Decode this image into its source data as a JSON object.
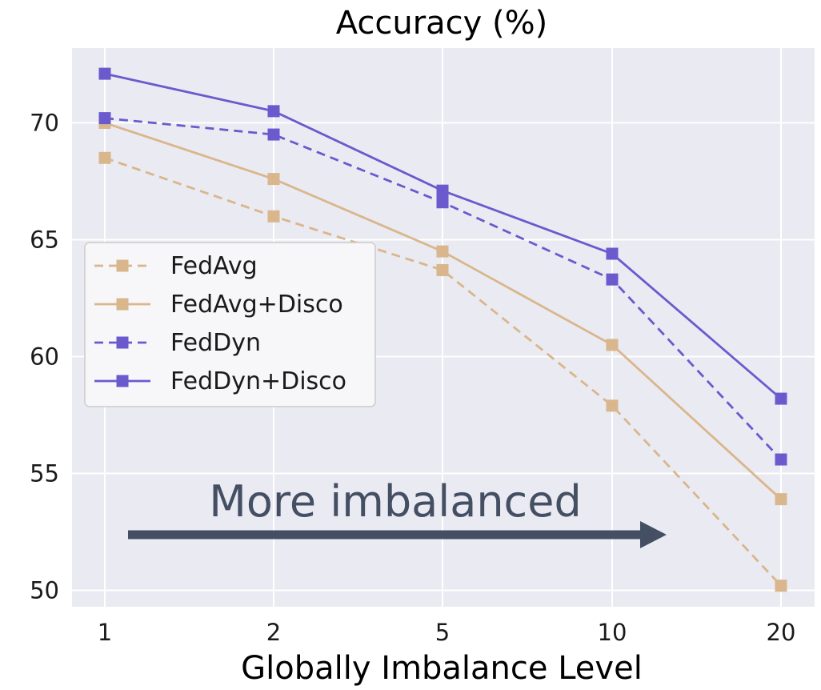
{
  "chart_data": {
    "type": "line",
    "title": "Accuracy (%)",
    "xlabel": "Globally Imbalance Level",
    "ylabel": "",
    "categories": [
      "1",
      "2",
      "5",
      "10",
      "20"
    ],
    "ylim": [
      49.3,
      73.2
    ],
    "yticks": [
      50,
      55,
      60,
      65,
      70
    ],
    "grid": true,
    "legend_position": "center-left",
    "series": [
      {
        "name": "FedAvg",
        "color": "#d9b68c",
        "dashed": true,
        "marker": "square",
        "values": [
          68.5,
          66.0,
          63.7,
          57.9,
          50.2
        ]
      },
      {
        "name": "FedAvg+Disco",
        "color": "#d9b68c",
        "dashed": false,
        "marker": "square",
        "values": [
          70.0,
          67.6,
          64.5,
          60.5,
          53.9
        ]
      },
      {
        "name": "FedDyn",
        "color": "#6a5acd",
        "dashed": true,
        "marker": "square",
        "values": [
          70.2,
          69.5,
          66.6,
          63.3,
          55.6
        ]
      },
      {
        "name": "FedDyn+Disco",
        "color": "#6a5acd",
        "dashed": false,
        "marker": "square",
        "values": [
          72.1,
          70.5,
          67.1,
          64.4,
          58.2
        ]
      }
    ],
    "annotation": {
      "text": "More imbalanced",
      "color": "#454f63"
    }
  }
}
